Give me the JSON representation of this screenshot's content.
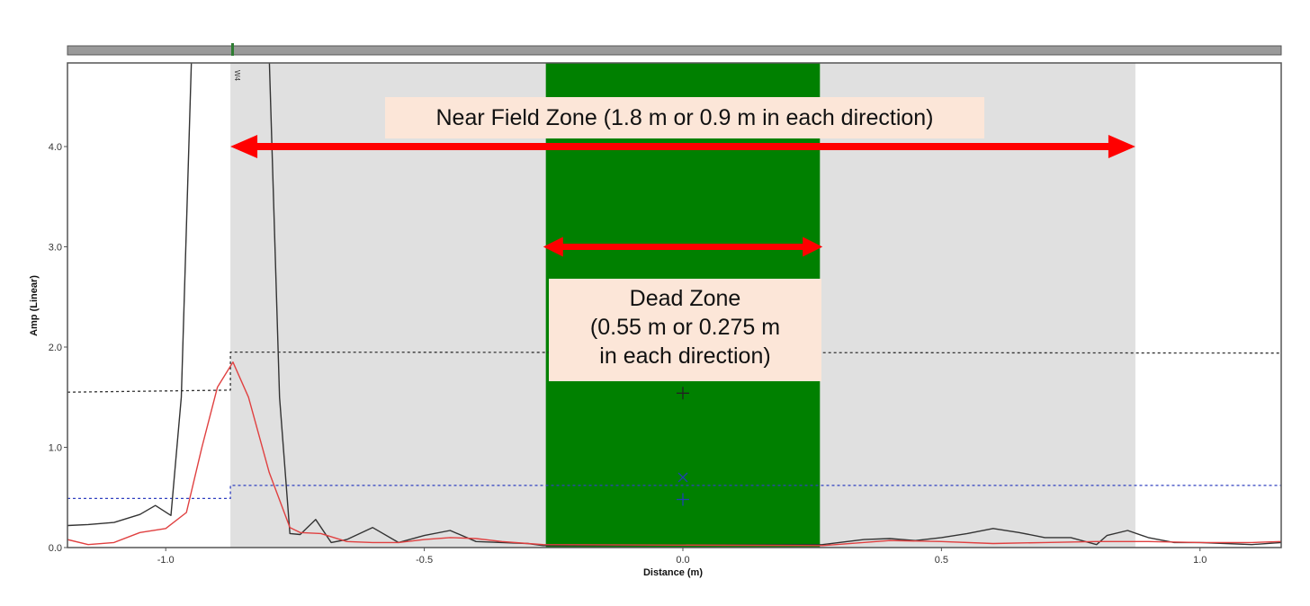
{
  "chart_data": {
    "type": "line",
    "title": "",
    "xlabel": "Distance (m)",
    "ylabel": "Amp (Linear)",
    "xlim": [
      -1.19,
      1.157
    ],
    "ylim": [
      0,
      4.9
    ],
    "x_ticks": [
      -1.0,
      -0.5,
      0.0,
      0.5,
      1.0
    ],
    "x_tick_labels": [
      "-1.0",
      "-0.5",
      "0.0",
      "0.5",
      "1.0"
    ],
    "y_ticks": [
      0.0,
      1.0,
      2.0,
      3.0,
      4.0
    ],
    "y_tick_labels": [
      "0.0",
      "1.0",
      "2.0",
      "3.0",
      "4.0"
    ],
    "grid": false,
    "legend": null,
    "series": [
      {
        "name": "black-signal",
        "color": "#333333",
        "x": [
          -1.19,
          -1.15,
          -1.1,
          -1.05,
          -1.02,
          -0.99,
          -0.97,
          -0.95,
          -0.93,
          -0.9,
          -0.84,
          -0.8,
          -0.78,
          -0.76,
          -0.74,
          -0.71,
          -0.68,
          -0.65,
          -0.6,
          -0.55,
          -0.5,
          -0.45,
          -0.4,
          -0.35,
          -0.3,
          -0.27,
          0.27,
          0.35,
          0.4,
          0.45,
          0.5,
          0.55,
          0.6,
          0.65,
          0.7,
          0.75,
          0.8,
          0.82,
          0.86,
          0.9,
          0.95,
          1.0,
          1.05,
          1.1,
          1.157
        ],
        "y": [
          0.22,
          0.23,
          0.25,
          0.33,
          0.42,
          0.32,
          1.5,
          4.9,
          6.0,
          6.0,
          6.0,
          4.9,
          1.5,
          0.14,
          0.13,
          0.28,
          0.05,
          0.08,
          0.2,
          0.05,
          0.12,
          0.17,
          0.06,
          0.05,
          0.04,
          0.02,
          0.03,
          0.08,
          0.09,
          0.07,
          0.1,
          0.14,
          0.19,
          0.15,
          0.1,
          0.1,
          0.03,
          0.12,
          0.17,
          0.1,
          0.05,
          0.05,
          0.04,
          0.03,
          0.05
        ]
      },
      {
        "name": "red-signal",
        "color": "#e04040",
        "x": [
          -1.19,
          -1.15,
          -1.1,
          -1.05,
          -1.0,
          -0.96,
          -0.93,
          -0.9,
          -0.87,
          -0.84,
          -0.8,
          -0.76,
          -0.74,
          -0.7,
          -0.65,
          -0.6,
          -0.55,
          -0.5,
          -0.45,
          -0.4,
          -0.35,
          -0.3,
          -0.27,
          0.27,
          0.4,
          0.5,
          0.6,
          0.7,
          0.8,
          0.9,
          1.0,
          1.1,
          1.157
        ],
        "y": [
          0.08,
          0.03,
          0.05,
          0.15,
          0.19,
          0.35,
          1.0,
          1.6,
          1.85,
          1.5,
          0.75,
          0.2,
          0.15,
          0.14,
          0.06,
          0.05,
          0.05,
          0.08,
          0.1,
          0.09,
          0.06,
          0.04,
          0.03,
          0.02,
          0.07,
          0.06,
          0.04,
          0.05,
          0.06,
          0.06,
          0.05,
          0.05,
          0.06
        ]
      },
      {
        "name": "black-threshold-dotted",
        "color": "#333333",
        "style": "dotted",
        "x": [
          -1.19,
          -0.875,
          -0.875,
          1.157
        ],
        "y": [
          1.55,
          1.57,
          1.95,
          1.94
        ]
      },
      {
        "name": "blue-threshold-dotted",
        "color": "#3040c0",
        "style": "dotted",
        "x": [
          -1.19,
          -0.875,
          -0.875,
          1.157
        ],
        "y": [
          0.49,
          0.49,
          0.62,
          0.62
        ]
      }
    ],
    "markers": [
      {
        "shape": "plus",
        "x": 0.0,
        "y": 1.54,
        "color": "#222222"
      },
      {
        "shape": "x",
        "x": 0.0,
        "y": 0.7,
        "color": "#2040b0"
      },
      {
        "shape": "plus",
        "x": 0.0,
        "y": 0.48,
        "color": "#2040b0"
      }
    ],
    "regions": [
      {
        "name": "near-field-zone",
        "x": [
          -0.875,
          0.875
        ],
        "color": "#e0e0e0"
      },
      {
        "name": "dead-zone",
        "x": [
          -0.265,
          0.265
        ],
        "color": "#008000"
      }
    ],
    "vertical_marker": {
      "label": "W4",
      "x": -0.875
    },
    "annotations": [
      {
        "text": "Near Field Zone (1.8 m or 0.9 m in each direction)",
        "arrow_x": [
          -0.875,
          0.875
        ],
        "arrow_y": 4.0,
        "arrow_color": "#ff0000"
      },
      {
        "text": "Dead Zone (0.55 m or 0.275 m in each direction)",
        "arrow_x": [
          -0.27,
          0.27
        ],
        "arrow_y": 3.0,
        "arrow_color": "#ff0000"
      }
    ]
  },
  "annotations": {
    "near_field_label": "Near Field Zone (1.8 m or 0.9 m in each direction)",
    "dead_zone_line1": "Dead Zone",
    "dead_zone_line2": "(0.55 m or 0.275 m",
    "dead_zone_line3": "in each direction)"
  },
  "axes": {
    "xlabel": "Distance (m)",
    "ylabel": "Amp (Linear)",
    "marker_label": "W4"
  }
}
